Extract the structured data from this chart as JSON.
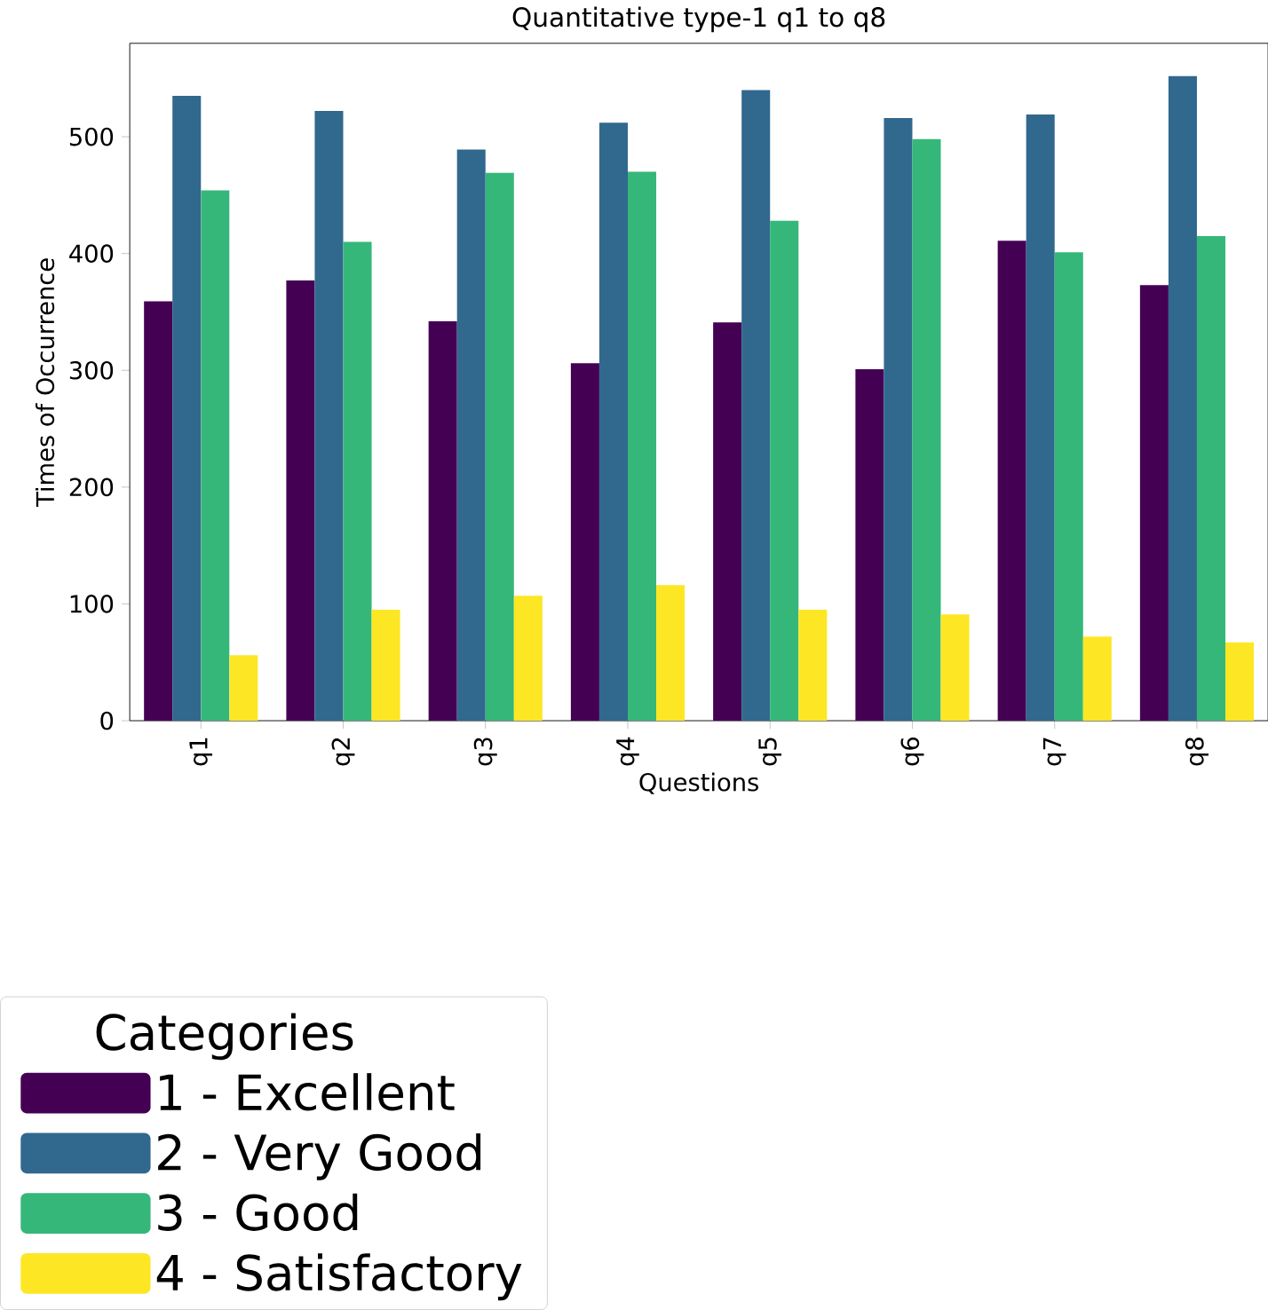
{
  "chart_data": {
    "type": "bar",
    "title": "Quantitative type-1 q1 to q8",
    "xlabel": "Questions",
    "ylabel": "Times of Occurrence",
    "legend_title": "Categories",
    "categories": [
      "q1",
      "q2",
      "q3",
      "q4",
      "q5",
      "q6",
      "q7",
      "q8"
    ],
    "series": [
      {
        "name": "1 - Excellent",
        "color": "#440154",
        "values": [
          359,
          377,
          342,
          306,
          341,
          301,
          411,
          373
        ]
      },
      {
        "name": "2 - Very Good",
        "color": "#31688e",
        "values": [
          535,
          522,
          489,
          512,
          540,
          516,
          519,
          552
        ]
      },
      {
        "name": "3 - Good",
        "color": "#35b779",
        "values": [
          454,
          410,
          469,
          470,
          428,
          498,
          401,
          415
        ]
      },
      {
        "name": "4 - Satisfactory",
        "color": "#fde725",
        "values": [
          56,
          95,
          107,
          116,
          95,
          91,
          72,
          67
        ]
      }
    ],
    "ylim": [
      0,
      580
    ],
    "yticks": [
      0,
      100,
      200,
      300,
      400,
      500
    ],
    "legend": "bottom",
    "grid": false
  }
}
